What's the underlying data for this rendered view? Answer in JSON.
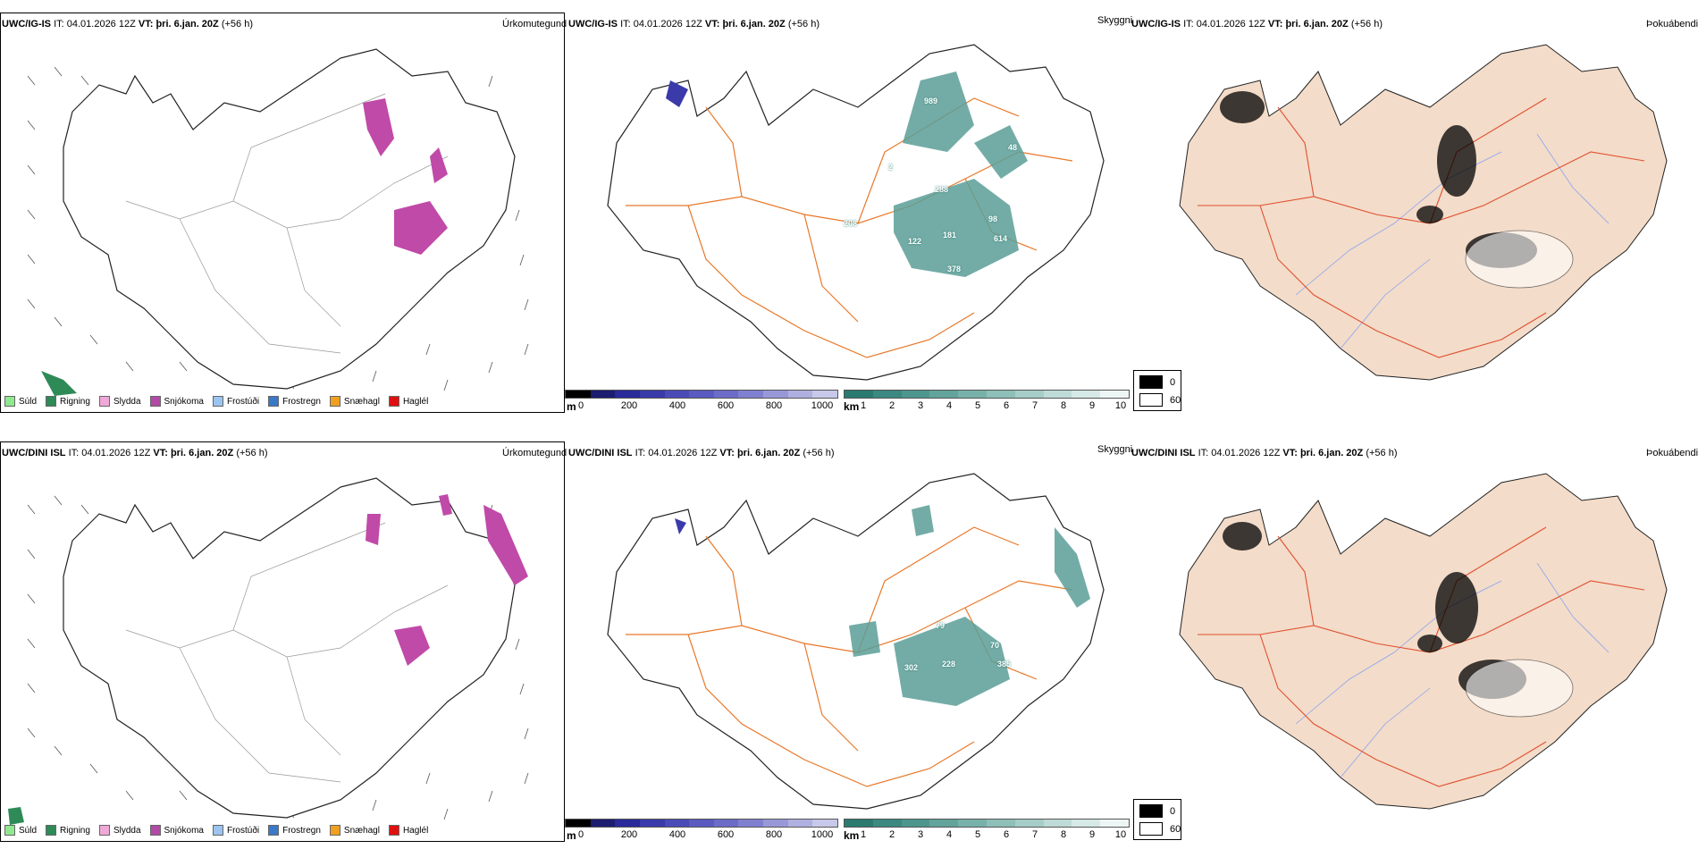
{
  "rows": [
    {
      "model": "UWC/IG-IS",
      "it_label": "IT:",
      "it_value": "04.01.2026 12Z",
      "vt_label": "VT:",
      "vt_value": "þri. 6.jan. 20Z",
      "lead": "(+56 h)",
      "values": [
        "989",
        "48",
        "2",
        "288",
        "208",
        "122",
        "181",
        "98",
        "614",
        "378"
      ]
    },
    {
      "model": "UWC/DINI ISL",
      "it_label": "IT:",
      "it_value": "04.01.2026 12Z",
      "vt_label": "VT:",
      "vt_value": "þri. 6.jan. 20Z",
      "lead": "(+56 h)",
      "values": [
        "79",
        "302",
        "228",
        "70",
        "385"
      ]
    }
  ],
  "panel_titles": {
    "precip": "Úrkomutegund",
    "visibility": "Skyggni",
    "fog": "Þokuábendi"
  },
  "precip_legend": [
    {
      "label": "Súld",
      "color": "#90e890"
    },
    {
      "label": "Rigning",
      "color": "#2e8b57"
    },
    {
      "label": "Slydda",
      "color": "#f0a8d8"
    },
    {
      "label": "Snjókoma",
      "color": "#b24aa6"
    },
    {
      "label": "Frostúði",
      "color": "#9cc4f0"
    },
    {
      "label": "Frostregn",
      "color": "#3a78c8"
    },
    {
      "label": "Snæhagl",
      "color": "#f0a020"
    },
    {
      "label": "Haglél",
      "color": "#e01010"
    }
  ],
  "ceiling_scale": {
    "unit": "m",
    "ticks": [
      "0",
      "200",
      "400",
      "600",
      "800",
      "1000"
    ],
    "colors": [
      "#000000",
      "#1c1c70",
      "#2a2a9a",
      "#3a3aaa",
      "#4b4bb8",
      "#5a5ac0",
      "#6c6cc8",
      "#8080d0",
      "#9898d8",
      "#b0b0e0",
      "#c8c8ea"
    ]
  },
  "visibility_scale": {
    "unit": "km",
    "ticks": [
      "1",
      "2",
      "3",
      "4",
      "5",
      "6",
      "7",
      "8",
      "9",
      "10"
    ],
    "colors": [
      "#2a7a70",
      "#3b8980",
      "#4d968e",
      "#62a39b",
      "#78b1aa",
      "#8fbfb9",
      "#a6cdc8",
      "#bedbd7",
      "#d6e9e6",
      "#eef6f5"
    ]
  },
  "fog_key": {
    "entries": [
      {
        "label": "0",
        "color": "#000000"
      },
      {
        "label": "60",
        "color": "#ffffff"
      }
    ]
  },
  "colors": {
    "land_fill": "#f3dcc9",
    "road": "#e8782a",
    "fog_road": "#e05030",
    "river": "#8aa4f0",
    "snow": "#c04aa8",
    "rain": "#2e8b57",
    "vis_fill": "#5a9e96"
  }
}
